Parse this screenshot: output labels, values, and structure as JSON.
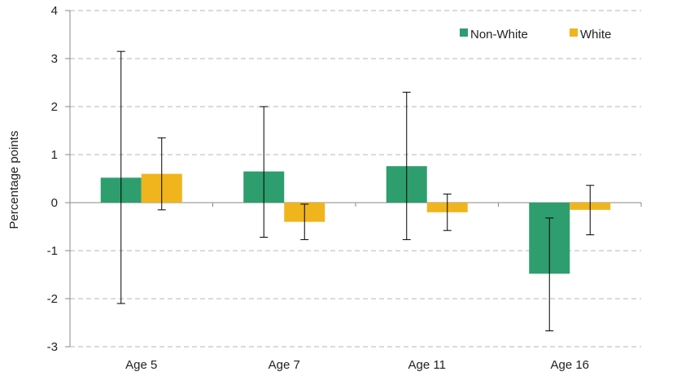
{
  "chart_data": {
    "type": "bar",
    "title": "",
    "xlabel": "",
    "ylabel": "Percentage points",
    "ylim": [
      -3,
      4
    ],
    "yticks": [
      -3,
      -2,
      -1,
      0,
      1,
      2,
      3,
      4
    ],
    "grid": "horizontal dashed",
    "categories": [
      "Age 5",
      "Age 7",
      "Age 11",
      "Age 16"
    ],
    "series": [
      {
        "name": "Non-White",
        "color": "#2e9e6f",
        "values": [
          0.52,
          0.65,
          0.76,
          -1.48
        ],
        "error_low": [
          -2.1,
          -0.72,
          -0.77,
          -2.67
        ],
        "error_high": [
          3.15,
          2.0,
          2.3,
          -0.32
        ]
      },
      {
        "name": "White",
        "color": "#f0b41c",
        "values": [
          0.6,
          -0.4,
          -0.2,
          -0.15
        ],
        "error_low": [
          -0.15,
          -0.77,
          -0.58,
          -0.67
        ],
        "error_high": [
          1.35,
          -0.03,
          0.18,
          0.36
        ]
      }
    ],
    "legend_position": "top-right"
  }
}
